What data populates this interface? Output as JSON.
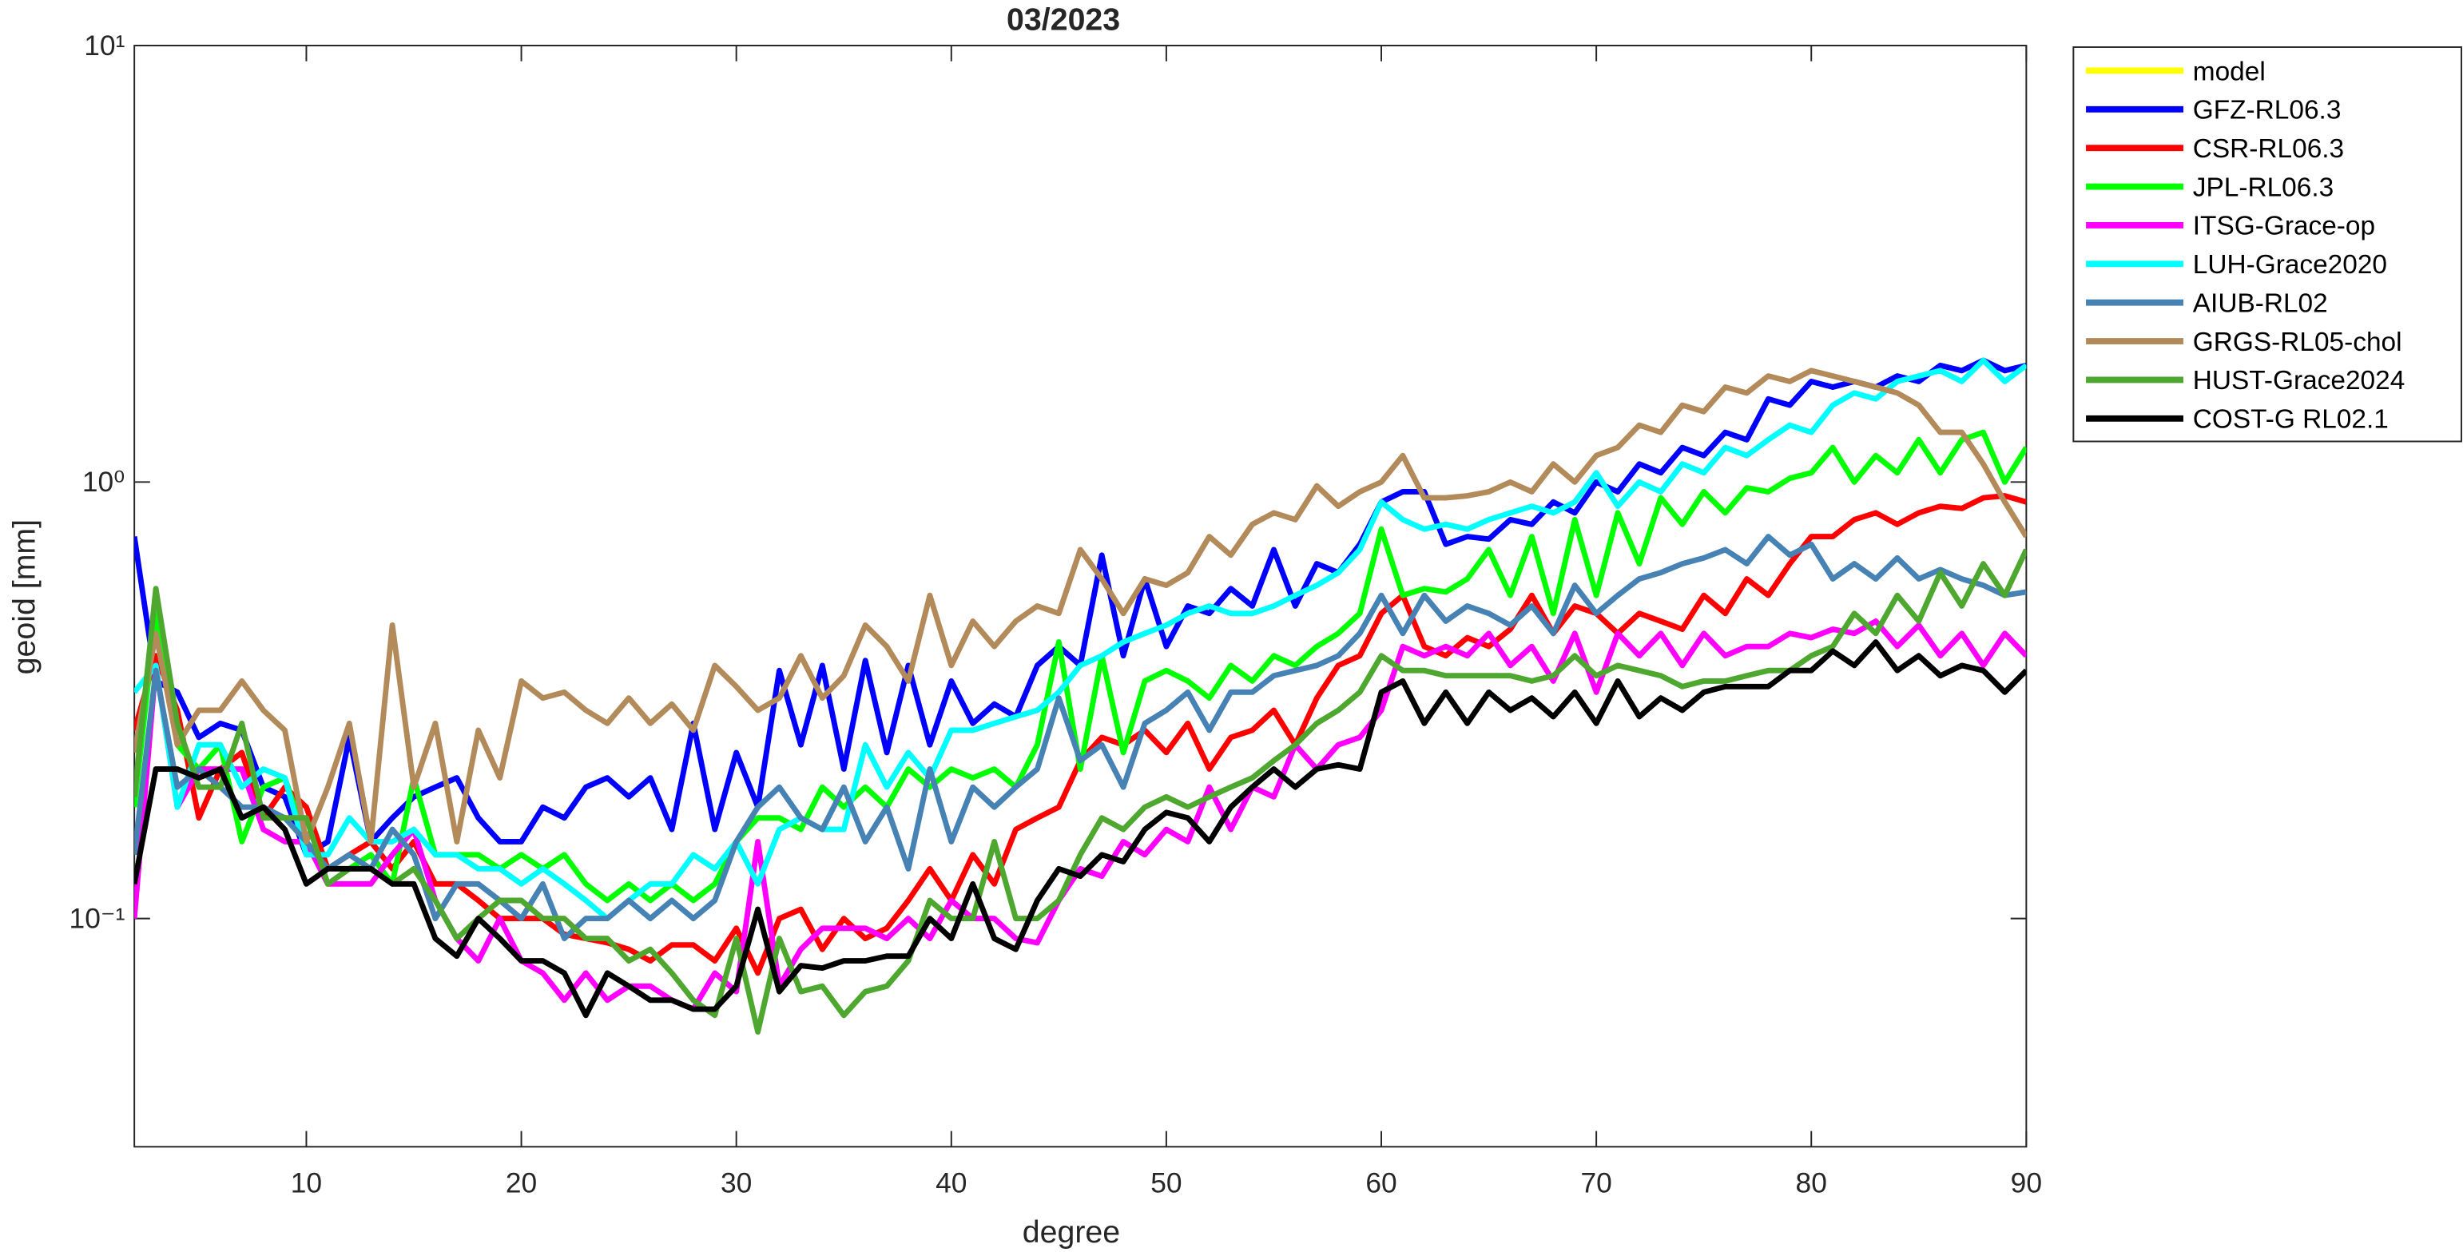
{
  "chart_data": {
    "type": "line",
    "title": "03/2023",
    "x_label": "degree",
    "y_label": "geoid [mm]",
    "log_y": true,
    "grid": false,
    "legend": "outside-right",
    "xlim": [
      2,
      90
    ],
    "ylim": [
      0.03,
      10
    ],
    "xticks": [
      10,
      20,
      30,
      40,
      50,
      60,
      70,
      80,
      90
    ],
    "yticks": [
      {
        "value": 0.1,
        "label": "10⁻¹"
      },
      {
        "value": 1,
        "label": "10⁰"
      },
      {
        "value": 10,
        "label": "10¹"
      }
    ],
    "x": [
      2,
      3,
      4,
      5,
      6,
      7,
      8,
      9,
      10,
      11,
      12,
      13,
      14,
      15,
      16,
      17,
      18,
      19,
      20,
      21,
      22,
      23,
      24,
      25,
      26,
      27,
      28,
      29,
      30,
      31,
      32,
      33,
      34,
      35,
      36,
      37,
      38,
      39,
      40,
      41,
      42,
      43,
      44,
      45,
      46,
      47,
      48,
      49,
      50,
      51,
      52,
      53,
      54,
      55,
      56,
      57,
      58,
      59,
      60,
      61,
      62,
      63,
      64,
      65,
      66,
      67,
      68,
      69,
      70,
      71,
      72,
      73,
      74,
      75,
      76,
      77,
      78,
      79,
      80,
      81,
      82,
      83,
      84,
      85,
      86,
      87,
      88,
      89,
      90
    ],
    "series": [
      {
        "name": "model",
        "color": "#ffff00",
        "values": [
          null,
          null,
          null,
          null,
          null,
          null,
          null,
          null,
          null,
          null,
          null,
          null,
          null,
          null,
          null,
          null,
          null,
          null,
          null,
          null,
          null,
          null,
          null,
          null,
          null,
          null,
          null,
          null,
          null,
          null,
          null,
          null,
          null,
          null,
          null,
          null,
          null,
          null,
          null,
          null,
          null,
          null,
          null,
          null,
          null,
          null,
          null,
          null,
          null,
          null,
          null,
          null,
          null,
          null,
          null,
          null,
          null,
          null,
          null,
          null,
          null,
          null,
          null,
          null,
          null,
          null,
          null,
          null,
          null,
          null,
          null,
          null,
          null,
          null,
          null,
          null,
          null,
          null,
          null,
          null,
          null,
          null,
          null,
          null,
          null,
          null,
          null,
          null,
          null
        ]
      },
      {
        "name": "GFZ-RL06.3",
        "color": "#0000ff",
        "values": [
          0.75,
          0.35,
          0.33,
          0.26,
          0.28,
          0.27,
          0.2,
          0.19,
          0.14,
          0.15,
          0.26,
          0.15,
          0.17,
          0.19,
          0.2,
          0.21,
          0.17,
          0.15,
          0.15,
          0.18,
          0.17,
          0.2,
          0.21,
          0.19,
          0.21,
          0.16,
          0.28,
          0.16,
          0.24,
          0.18,
          0.37,
          0.25,
          0.38,
          0.22,
          0.39,
          0.24,
          0.38,
          0.25,
          0.35,
          0.28,
          0.31,
          0.29,
          0.38,
          0.42,
          0.38,
          0.68,
          0.4,
          0.6,
          0.42,
          0.52,
          0.5,
          0.57,
          0.52,
          0.7,
          0.52,
          0.65,
          0.62,
          0.72,
          0.9,
          0.95,
          0.95,
          0.72,
          0.75,
          0.74,
          0.82,
          0.8,
          0.9,
          0.85,
          1.0,
          0.95,
          1.1,
          1.05,
          1.2,
          1.15,
          1.3,
          1.25,
          1.55,
          1.5,
          1.7,
          1.65,
          1.7,
          1.65,
          1.75,
          1.7,
          1.85,
          1.8,
          1.9,
          1.8,
          1.85
        ]
      },
      {
        "name": "CSR-RL06.3",
        "color": "#ff0000",
        "values": [
          0.27,
          0.4,
          0.3,
          0.17,
          0.22,
          0.24,
          0.17,
          0.2,
          0.18,
          0.13,
          0.14,
          0.15,
          0.13,
          0.15,
          0.12,
          0.12,
          0.11,
          0.1,
          0.1,
          0.1,
          0.092,
          0.09,
          0.088,
          0.085,
          0.08,
          0.087,
          0.087,
          0.08,
          0.095,
          0.075,
          0.1,
          0.105,
          0.085,
          0.1,
          0.09,
          0.095,
          0.11,
          0.13,
          0.11,
          0.14,
          0.12,
          0.16,
          0.17,
          0.18,
          0.23,
          0.26,
          0.25,
          0.27,
          0.24,
          0.28,
          0.22,
          0.26,
          0.27,
          0.3,
          0.25,
          0.32,
          0.38,
          0.4,
          0.5,
          0.55,
          0.42,
          0.4,
          0.44,
          0.42,
          0.46,
          0.55,
          0.45,
          0.52,
          0.5,
          0.45,
          0.5,
          0.48,
          0.46,
          0.55,
          0.5,
          0.6,
          0.55,
          0.65,
          0.75,
          0.75,
          0.82,
          0.85,
          0.8,
          0.85,
          0.88,
          0.87,
          0.92,
          0.93,
          0.9
        ]
      },
      {
        "name": "JPL-RL06.3",
        "color": "#00ff00",
        "values": [
          0.18,
          0.5,
          0.25,
          0.22,
          0.25,
          0.15,
          0.2,
          0.21,
          0.15,
          0.12,
          0.13,
          0.14,
          0.12,
          0.21,
          0.14,
          0.14,
          0.14,
          0.13,
          0.14,
          0.13,
          0.14,
          0.12,
          0.11,
          0.12,
          0.11,
          0.12,
          0.11,
          0.12,
          0.15,
          0.17,
          0.17,
          0.16,
          0.2,
          0.18,
          0.2,
          0.18,
          0.22,
          0.2,
          0.22,
          0.21,
          0.22,
          0.2,
          0.25,
          0.43,
          0.22,
          0.4,
          0.24,
          0.35,
          0.37,
          0.35,
          0.32,
          0.38,
          0.35,
          0.4,
          0.38,
          0.42,
          0.45,
          0.5,
          0.78,
          0.55,
          0.57,
          0.56,
          0.6,
          0.7,
          0.55,
          0.75,
          0.5,
          0.82,
          0.55,
          0.85,
          0.65,
          0.92,
          0.8,
          0.95,
          0.85,
          0.97,
          0.95,
          1.02,
          1.05,
          1.2,
          1.0,
          1.15,
          1.05,
          1.25,
          1.05,
          1.25,
          1.3,
          1.0,
          1.2
        ]
      },
      {
        "name": "ITSG-Grace-op",
        "color": "#ff00ff",
        "values": [
          0.1,
          0.38,
          0.18,
          0.22,
          0.22,
          0.22,
          0.16,
          0.15,
          0.15,
          0.12,
          0.12,
          0.12,
          0.14,
          0.16,
          0.11,
          0.09,
          0.08,
          0.1,
          0.08,
          0.075,
          0.065,
          0.075,
          0.065,
          0.07,
          0.07,
          0.065,
          0.062,
          0.075,
          0.068,
          0.15,
          0.07,
          0.085,
          0.095,
          0.095,
          0.095,
          0.09,
          0.1,
          0.09,
          0.11,
          0.1,
          0.1,
          0.09,
          0.088,
          0.11,
          0.13,
          0.125,
          0.15,
          0.14,
          0.16,
          0.15,
          0.2,
          0.16,
          0.2,
          0.19,
          0.25,
          0.22,
          0.25,
          0.26,
          0.3,
          0.42,
          0.4,
          0.42,
          0.4,
          0.45,
          0.38,
          0.42,
          0.35,
          0.45,
          0.33,
          0.45,
          0.4,
          0.45,
          0.38,
          0.45,
          0.4,
          0.42,
          0.42,
          0.45,
          0.44,
          0.46,
          0.45,
          0.48,
          0.42,
          0.47,
          0.4,
          0.45,
          0.38,
          0.45,
          0.4
        ]
      },
      {
        "name": "LUH-Grace2020",
        "color": "#00ffff",
        "values": [
          0.33,
          0.38,
          0.18,
          0.25,
          0.25,
          0.2,
          0.22,
          0.21,
          0.14,
          0.14,
          0.17,
          0.15,
          0.15,
          0.16,
          0.14,
          0.14,
          0.13,
          0.13,
          0.12,
          0.13,
          0.12,
          0.11,
          0.1,
          0.11,
          0.12,
          0.12,
          0.14,
          0.13,
          0.15,
          0.12,
          0.16,
          0.17,
          0.16,
          0.16,
          0.25,
          0.2,
          0.24,
          0.21,
          0.27,
          0.27,
          0.28,
          0.29,
          0.3,
          0.33,
          0.38,
          0.4,
          0.43,
          0.45,
          0.47,
          0.5,
          0.52,
          0.5,
          0.5,
          0.52,
          0.55,
          0.58,
          0.62,
          0.7,
          0.9,
          0.82,
          0.78,
          0.8,
          0.78,
          0.82,
          0.85,
          0.88,
          0.85,
          0.9,
          1.05,
          0.88,
          1.0,
          0.95,
          1.1,
          1.05,
          1.2,
          1.15,
          1.25,
          1.35,
          1.3,
          1.5,
          1.6,
          1.55,
          1.7,
          1.75,
          1.8,
          1.7,
          1.9,
          1.7,
          1.85
        ]
      },
      {
        "name": "AIUB-RL02",
        "color": "#4682b4",
        "values": [
          0.14,
          0.37,
          0.2,
          0.22,
          0.2,
          0.18,
          0.18,
          0.17,
          0.15,
          0.13,
          0.14,
          0.13,
          0.16,
          0.14,
          0.1,
          0.12,
          0.12,
          0.11,
          0.1,
          0.12,
          0.09,
          0.1,
          0.1,
          0.11,
          0.1,
          0.11,
          0.1,
          0.11,
          0.15,
          0.18,
          0.2,
          0.17,
          0.16,
          0.2,
          0.15,
          0.18,
          0.13,
          0.22,
          0.15,
          0.2,
          0.18,
          0.2,
          0.22,
          0.32,
          0.23,
          0.25,
          0.2,
          0.28,
          0.3,
          0.33,
          0.27,
          0.33,
          0.33,
          0.36,
          0.37,
          0.38,
          0.4,
          0.45,
          0.55,
          0.45,
          0.55,
          0.48,
          0.52,
          0.5,
          0.47,
          0.52,
          0.45,
          0.58,
          0.5,
          0.55,
          0.6,
          0.62,
          0.65,
          0.67,
          0.7,
          0.65,
          0.75,
          0.68,
          0.72,
          0.6,
          0.65,
          0.6,
          0.67,
          0.6,
          0.63,
          0.6,
          0.58,
          0.55,
          0.56
        ]
      },
      {
        "name": "GRGS-RL05-chol",
        "color": "#b38a5a",
        "values": [
          0.24,
          0.45,
          0.25,
          0.3,
          0.3,
          0.35,
          0.3,
          0.27,
          0.15,
          0.2,
          0.28,
          0.15,
          0.47,
          0.2,
          0.28,
          0.15,
          0.27,
          0.21,
          0.35,
          0.32,
          0.33,
          0.3,
          0.28,
          0.32,
          0.28,
          0.31,
          0.27,
          0.38,
          0.34,
          0.3,
          0.32,
          0.4,
          0.32,
          0.36,
          0.47,
          0.42,
          0.35,
          0.55,
          0.38,
          0.48,
          0.42,
          0.48,
          0.52,
          0.5,
          0.7,
          0.6,
          0.5,
          0.6,
          0.58,
          0.62,
          0.75,
          0.68,
          0.8,
          0.85,
          0.82,
          0.98,
          0.88,
          0.95,
          1.0,
          1.15,
          0.92,
          0.92,
          0.93,
          0.95,
          1.0,
          0.95,
          1.1,
          1.0,
          1.15,
          1.2,
          1.35,
          1.3,
          1.5,
          1.45,
          1.65,
          1.6,
          1.75,
          1.7,
          1.8,
          1.75,
          1.7,
          1.65,
          1.6,
          1.5,
          1.3,
          1.3,
          1.1,
          0.9,
          0.75
        ]
      },
      {
        "name": "HUST-Grace2024",
        "color": "#4ea72e",
        "values": [
          0.19,
          0.57,
          0.28,
          0.2,
          0.2,
          0.28,
          0.17,
          0.17,
          0.17,
          0.12,
          0.13,
          0.13,
          0.12,
          0.13,
          0.11,
          0.09,
          0.1,
          0.11,
          0.11,
          0.1,
          0.1,
          0.09,
          0.09,
          0.08,
          0.085,
          0.075,
          0.065,
          0.06,
          0.09,
          0.055,
          0.09,
          0.068,
          0.07,
          0.06,
          0.068,
          0.07,
          0.08,
          0.11,
          0.1,
          0.1,
          0.15,
          0.1,
          0.1,
          0.11,
          0.14,
          0.17,
          0.16,
          0.18,
          0.19,
          0.18,
          0.19,
          0.2,
          0.21,
          0.23,
          0.25,
          0.28,
          0.3,
          0.33,
          0.4,
          0.37,
          0.37,
          0.36,
          0.36,
          0.36,
          0.36,
          0.35,
          0.36,
          0.4,
          0.36,
          0.38,
          0.37,
          0.36,
          0.34,
          0.35,
          0.35,
          0.36,
          0.37,
          0.37,
          0.4,
          0.42,
          0.5,
          0.45,
          0.55,
          0.48,
          0.62,
          0.52,
          0.65,
          0.55,
          0.7
        ]
      },
      {
        "name": "COST-G RL02.1",
        "color": "#000000",
        "values": [
          0.12,
          0.22,
          0.22,
          0.21,
          0.22,
          0.17,
          0.18,
          0.16,
          0.12,
          0.13,
          0.13,
          0.13,
          0.12,
          0.12,
          0.09,
          0.082,
          0.1,
          0.09,
          0.08,
          0.08,
          0.075,
          0.06,
          0.075,
          0.07,
          0.065,
          0.065,
          0.062,
          0.062,
          0.07,
          0.105,
          0.068,
          0.078,
          0.077,
          0.08,
          0.08,
          0.082,
          0.082,
          0.1,
          0.09,
          0.12,
          0.09,
          0.085,
          0.11,
          0.13,
          0.125,
          0.14,
          0.135,
          0.16,
          0.175,
          0.17,
          0.15,
          0.18,
          0.2,
          0.22,
          0.2,
          0.22,
          0.225,
          0.22,
          0.33,
          0.35,
          0.28,
          0.33,
          0.28,
          0.33,
          0.3,
          0.32,
          0.29,
          0.33,
          0.28,
          0.35,
          0.29,
          0.32,
          0.3,
          0.33,
          0.34,
          0.34,
          0.34,
          0.37,
          0.37,
          0.41,
          0.38,
          0.43,
          0.37,
          0.4,
          0.36,
          0.38,
          0.37,
          0.33,
          0.37
        ]
      }
    ]
  }
}
